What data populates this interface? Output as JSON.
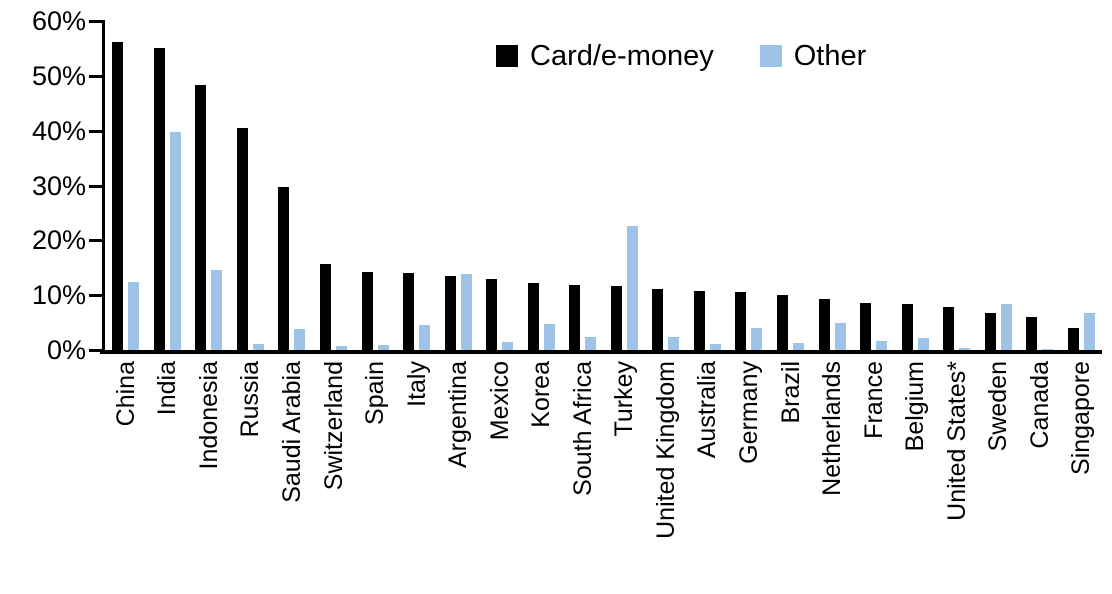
{
  "chart_data": {
    "type": "bar",
    "title": "",
    "xlabel": "",
    "ylabel": "",
    "ylim": [
      0,
      60
    ],
    "ytick_labels": [
      "60%",
      "50%",
      "40%",
      "30%",
      "20%",
      "10%",
      "0%"
    ],
    "grid": false,
    "legend_position": "top-center",
    "categories": [
      "China",
      "India",
      "Indonesia",
      "Russia",
      "Saudi Arabia",
      "Switzerland",
      "Spain",
      "Italy",
      "Argentina",
      "Mexico",
      "Korea",
      "South Africa",
      "Turkey",
      "United Kingdom",
      "Australia",
      "Germany",
      "Brazil",
      "Netherlands",
      "France",
      "Belgium",
      "United States*",
      "Sweden",
      "Canada",
      "Singapore"
    ],
    "series": [
      {
        "name": "Card/e-money",
        "color": "#000000",
        "values": [
          56.2,
          55.0,
          48.4,
          40.5,
          29.8,
          15.6,
          14.2,
          14.1,
          13.5,
          13.0,
          12.3,
          11.8,
          11.6,
          11.2,
          10.8,
          10.6,
          10.1,
          9.3,
          8.6,
          8.3,
          7.9,
          6.7,
          6.0,
          4.0
        ]
      },
      {
        "name": "Other",
        "color": "#9DC3E6",
        "values": [
          12.4,
          39.7,
          14.5,
          1.1,
          3.9,
          0.8,
          1.0,
          4.6,
          13.9,
          1.4,
          4.7,
          2.4,
          22.6,
          2.4,
          1.1,
          4.0,
          1.2,
          5.0,
          1.6,
          2.1,
          0.3,
          8.3,
          0.1,
          6.8
        ]
      }
    ]
  }
}
